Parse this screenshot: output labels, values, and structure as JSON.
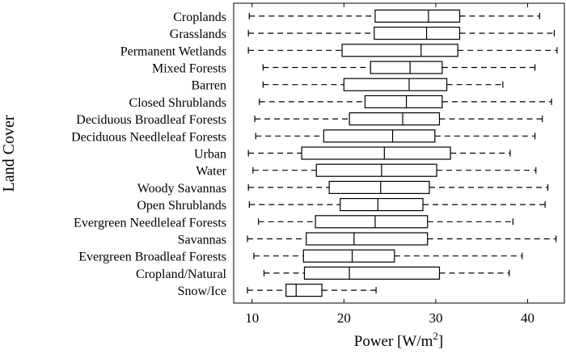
{
  "chart_data": {
    "type": "boxplot",
    "orientation": "horizontal",
    "xlabel": "Power [W/m",
    "xlabel_superscript": "2",
    "xlabel_close": "]",
    "ylabel": "Land Cover",
    "xlim": [
      8,
      44
    ],
    "xticks": [
      "10",
      "20",
      "30",
      "40"
    ],
    "grid": false,
    "categories": [
      {
        "name": "Croplands",
        "min": 9.7,
        "q1": 23.4,
        "median": 29.2,
        "q3": 32.6,
        "max": 41.3
      },
      {
        "name": "Grasslands",
        "min": 9.6,
        "q1": 23.3,
        "median": 29.0,
        "q3": 32.6,
        "max": 42.9
      },
      {
        "name": "Permanent Wetlands",
        "min": 9.6,
        "q1": 19.8,
        "median": 28.4,
        "q3": 32.4,
        "max": 43.2
      },
      {
        "name": "Mixed Forests",
        "min": 11.2,
        "q1": 22.9,
        "median": 27.2,
        "q3": 30.7,
        "max": 40.8
      },
      {
        "name": "Barren",
        "min": 11.2,
        "q1": 20.0,
        "median": 27.1,
        "q3": 31.2,
        "max": 37.3
      },
      {
        "name": "Closed Shrublands",
        "min": 10.8,
        "q1": 22.3,
        "median": 26.8,
        "q3": 30.7,
        "max": 42.6
      },
      {
        "name": "Deciduous Broadleaf Forests",
        "min": 10.3,
        "q1": 20.6,
        "median": 26.4,
        "q3": 30.4,
        "max": 41.6
      },
      {
        "name": "Deciduous Needleleaf Forests",
        "min": 10.4,
        "q1": 17.8,
        "median": 25.3,
        "q3": 29.9,
        "max": 40.8
      },
      {
        "name": "Urban",
        "min": 9.6,
        "q1": 15.4,
        "median": 24.4,
        "q3": 31.6,
        "max": 38.1
      },
      {
        "name": "Water",
        "min": 10.1,
        "q1": 17.0,
        "median": 24.1,
        "q3": 30.1,
        "max": 40.9
      },
      {
        "name": "Woody Savannas",
        "min": 9.6,
        "q1": 18.4,
        "median": 24.0,
        "q3": 29.3,
        "max": 42.2
      },
      {
        "name": "Open Shrublands",
        "min": 9.7,
        "q1": 19.6,
        "median": 23.7,
        "q3": 28.6,
        "max": 41.9
      },
      {
        "name": "Evergreen Needleleaf Forests",
        "min": 10.7,
        "q1": 16.9,
        "median": 23.4,
        "q3": 29.1,
        "max": 38.4
      },
      {
        "name": "Savannas",
        "min": 9.5,
        "q1": 15.9,
        "median": 21.1,
        "q3": 29.1,
        "max": 43.1
      },
      {
        "name": "Evergreen Broadleaf Forests",
        "min": 10.2,
        "q1": 15.6,
        "median": 20.9,
        "q3": 25.5,
        "max": 39.4
      },
      {
        "name": "Cropland/Natural",
        "min": 11.3,
        "q1": 15.7,
        "median": 20.6,
        "q3": 30.4,
        "max": 38.0
      },
      {
        "name": "Snow/Ice",
        "min": 9.5,
        "q1": 13.7,
        "median": 14.8,
        "q3": 17.6,
        "max": 23.5
      }
    ]
  }
}
